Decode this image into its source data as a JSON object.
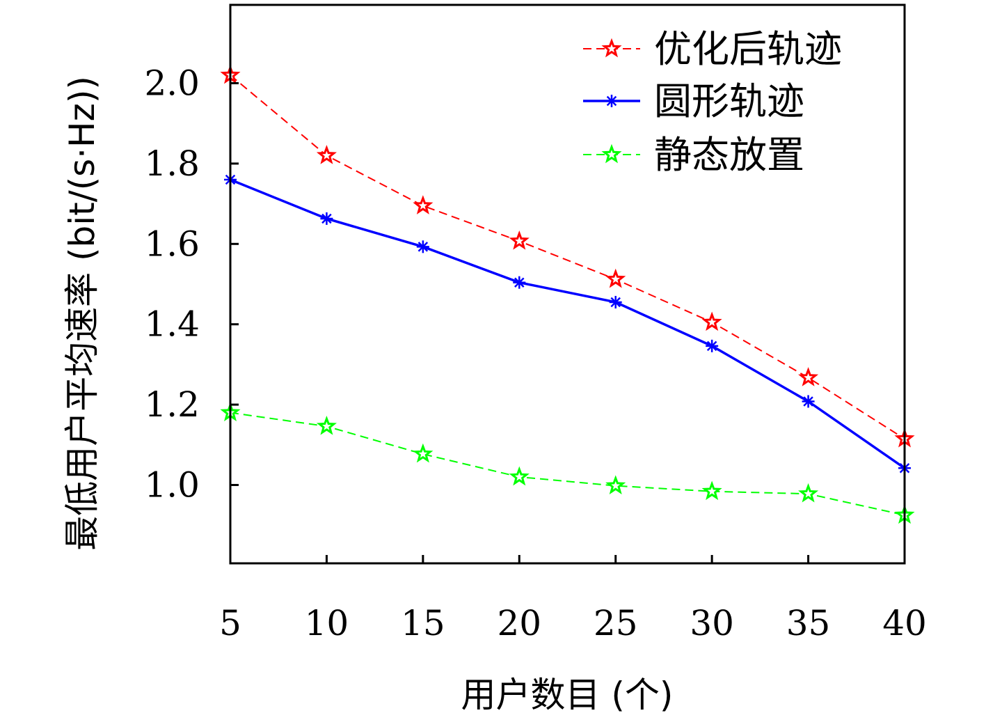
{
  "chart_data": {
    "type": "line",
    "x": [
      5,
      10,
      15,
      20,
      25,
      30,
      35,
      40
    ],
    "xticks": [
      "5",
      "10",
      "15",
      "20",
      "25",
      "30",
      "35",
      "40"
    ],
    "yticks": [
      "1.0",
      "1.2",
      "1.4",
      "1.6",
      "1.8",
      "2.0"
    ],
    "ytick_values": [
      1.0,
      1.2,
      1.4,
      1.6,
      1.8,
      2.0
    ],
    "xlim": [
      5,
      40
    ],
    "ylim": [
      0.805,
      2.195
    ],
    "xlabel": "用户数目 (个)",
    "ylabel": "最低用户平均速率 (bit/(s·Hz))",
    "grid": false,
    "legend_position": "top-right",
    "series": [
      {
        "name": "优化后轨迹",
        "values": [
          2.02,
          1.82,
          1.695,
          1.607,
          1.512,
          1.405,
          1.267,
          1.115
        ],
        "color": "#ff0000",
        "line_style": "dashed",
        "marker": "star-outline"
      },
      {
        "name": "圆形轨迹",
        "values": [
          1.76,
          1.663,
          1.593,
          1.504,
          1.455,
          1.346,
          1.208,
          1.042
        ],
        "color": "#0000ff",
        "line_style": "solid",
        "marker": "asterisk"
      },
      {
        "name": "静态放置",
        "values": [
          1.18,
          1.146,
          1.077,
          1.02,
          0.998,
          0.984,
          0.978,
          0.925
        ],
        "color": "#00ff00",
        "line_style": "dashed",
        "marker": "star-outline"
      }
    ]
  }
}
